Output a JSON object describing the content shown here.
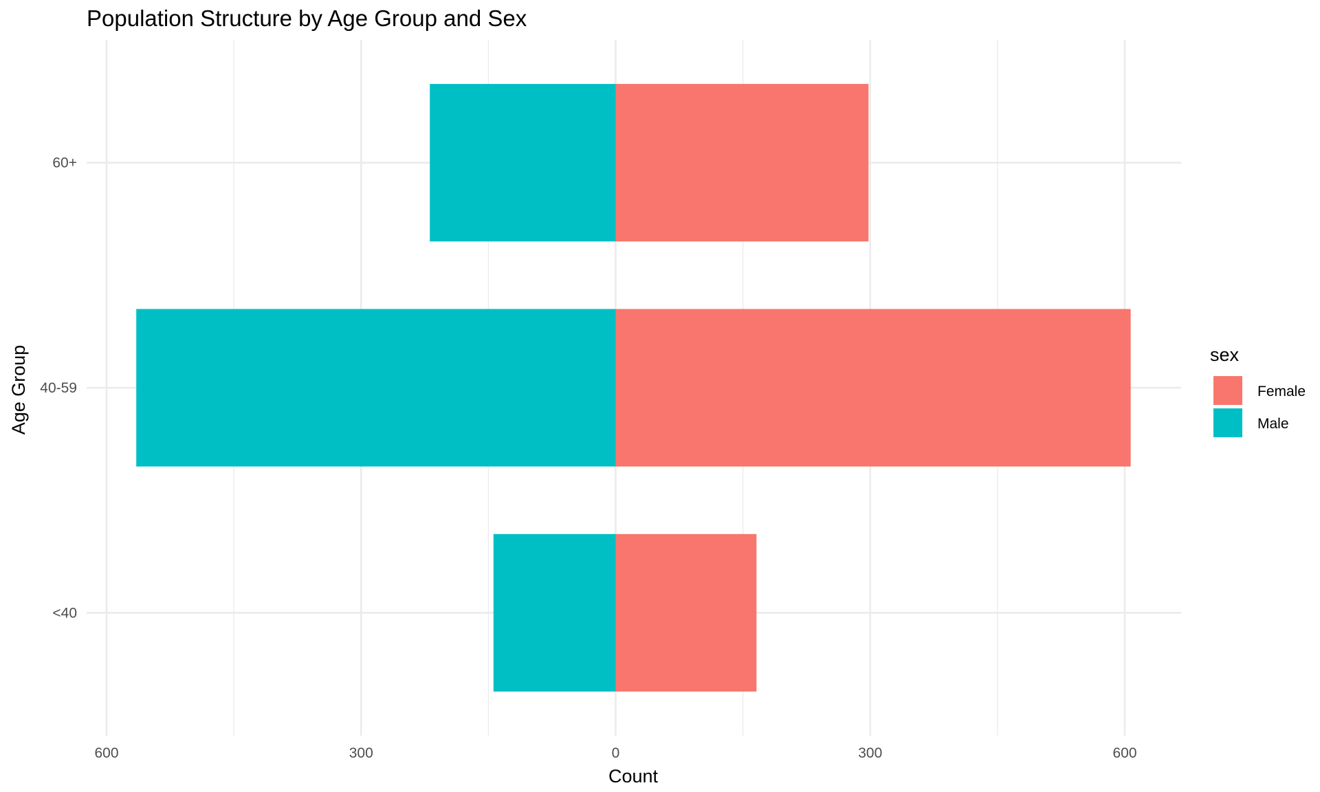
{
  "chart_data": {
    "type": "bar",
    "orientation": "horizontal",
    "title": "Population Structure by Age Group and Sex",
    "xlabel": "Count",
    "ylabel": "Age Group",
    "categories": [
      "<40",
      "40-59",
      "60+"
    ],
    "series": [
      {
        "name": "Female",
        "color": "#F8766D",
        "values": [
          166,
          607,
          298
        ]
      },
      {
        "name": "Male",
        "color": "#00BFC4",
        "values": [
          -144,
          -565,
          -219
        ]
      }
    ],
    "xlim": [
      -600,
      600
    ],
    "x_ticks": [
      -600,
      -300,
      0,
      300,
      600
    ],
    "x_tick_labels": [
      "600",
      "300",
      "0",
      "300",
      "600"
    ],
    "grid": true,
    "legend": {
      "title": "sex",
      "position": "right",
      "entries": [
        "Female",
        "Male"
      ]
    }
  }
}
